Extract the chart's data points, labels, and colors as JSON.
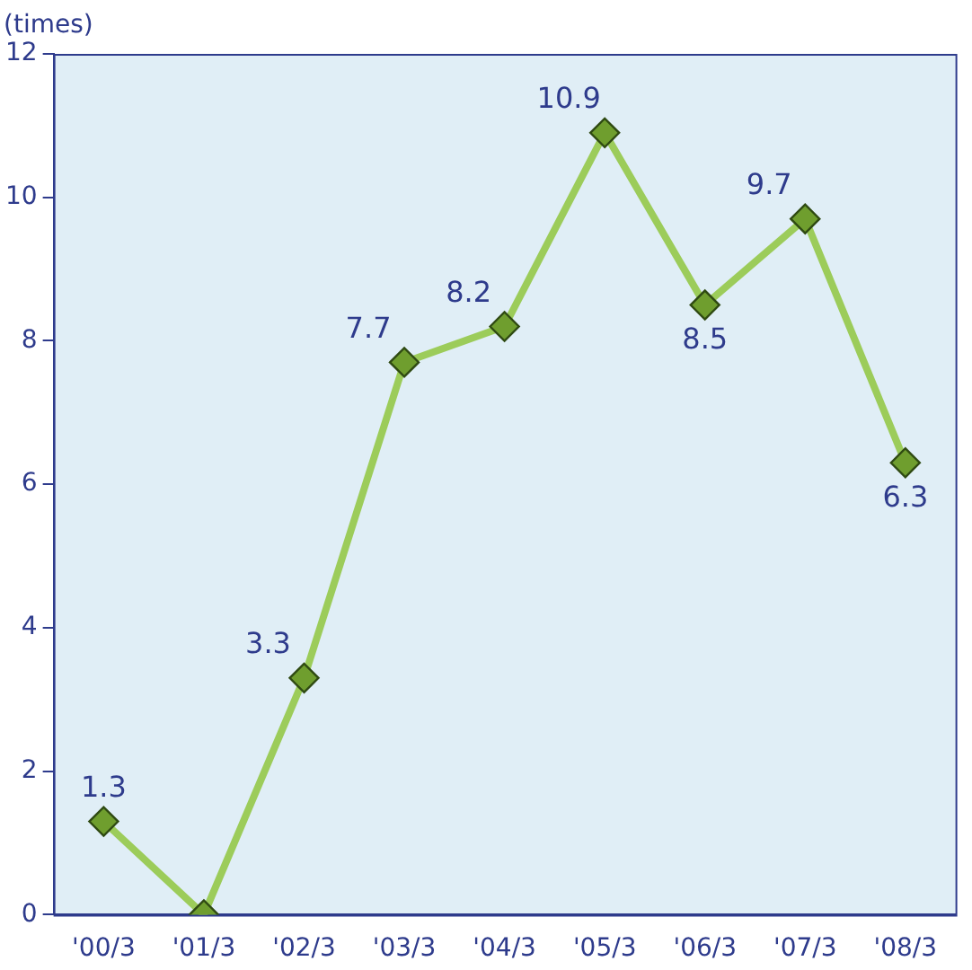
{
  "chart_data": {
    "type": "line",
    "ylabel": "(times)",
    "categories": [
      "'00/3",
      "'01/3",
      "'02/3",
      "'03/3",
      "'04/3",
      "'05/3",
      "'06/3",
      "'07/3",
      "'08/3"
    ],
    "series": [
      {
        "color": "#9ccc5a",
        "values": [
          1.3,
          0,
          3.3,
          7.7,
          8.2,
          10.9,
          8.5,
          9.7,
          6.3
        ],
        "value_labels": [
          "1.3",
          null,
          "3.3",
          "7.7",
          "8.2",
          "10.9",
          "8.5",
          "9.7",
          "6.3"
        ]
      }
    ],
    "ylim": [
      0,
      12
    ],
    "yticks": [
      0,
      2,
      4,
      6,
      8,
      10,
      12
    ],
    "grid": false,
    "legend": false,
    "marker": "diamond",
    "line_style": "solid"
  }
}
